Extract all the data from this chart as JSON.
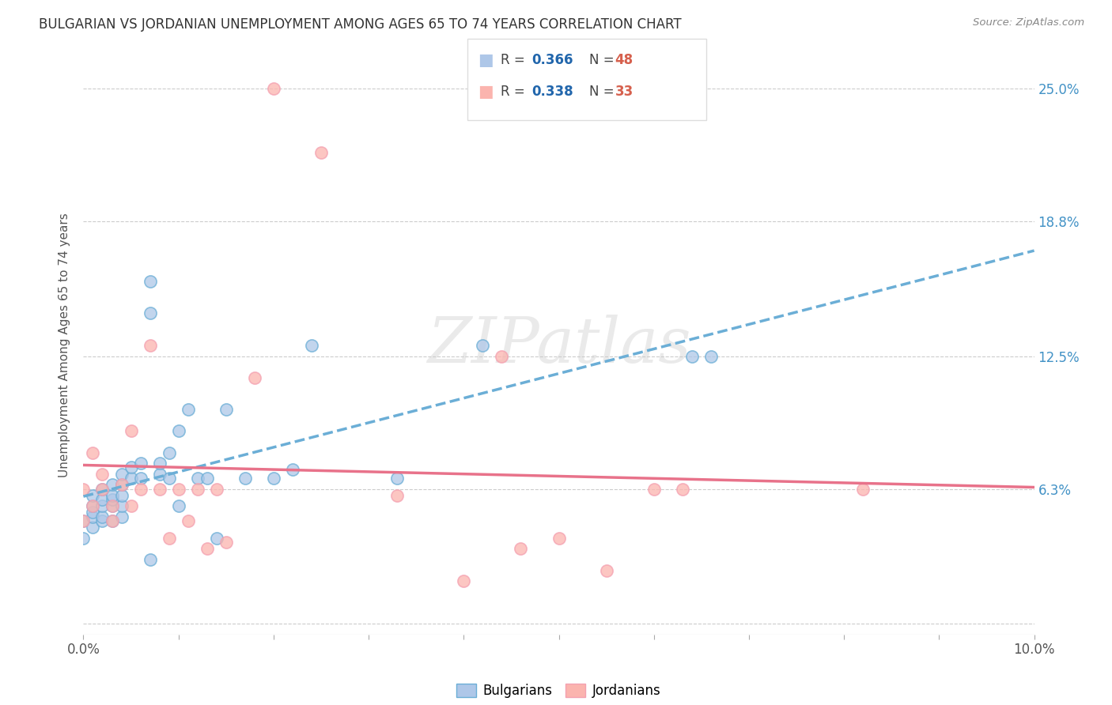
{
  "title": "BULGARIAN VS JORDANIAN UNEMPLOYMENT AMONG AGES 65 TO 74 YEARS CORRELATION CHART",
  "source": "Source: ZipAtlas.com",
  "ylabel": "Unemployment Among Ages 65 to 74 years",
  "xlim": [
    0.0,
    0.1
  ],
  "ylim": [
    -0.005,
    0.265
  ],
  "xticks": [
    0.0,
    0.01,
    0.02,
    0.03,
    0.04,
    0.05,
    0.06,
    0.07,
    0.08,
    0.09,
    0.1
  ],
  "xticklabels": [
    "0.0%",
    "",
    "",
    "",
    "",
    "",
    "",
    "",
    "",
    "",
    "10.0%"
  ],
  "yticks_right": [
    0.063,
    0.125,
    0.188,
    0.25
  ],
  "ytick_right_labels": [
    "6.3%",
    "12.5%",
    "18.8%",
    "25.0%"
  ],
  "bulgarian_R": 0.366,
  "bulgarian_N": 48,
  "jordanian_R": 0.338,
  "jordanian_N": 33,
  "bulgarian_color": "#aec7e8",
  "bulgarian_edge_color": "#6baed6",
  "jordanian_color": "#fbb4ae",
  "jordanian_edge_color": "#f4a0b0",
  "bulgarian_line_color": "#6baed6",
  "jordanian_line_color": "#e8728a",
  "legend_R_color": "#2166ac",
  "legend_N_color": "#d6604d",
  "bg_color": "#ffffff",
  "watermark": "ZIPatlas",
  "bulgarians_x": [
    0.0,
    0.0,
    0.001,
    0.001,
    0.001,
    0.001,
    0.001,
    0.002,
    0.002,
    0.002,
    0.002,
    0.002,
    0.003,
    0.003,
    0.003,
    0.003,
    0.003,
    0.004,
    0.004,
    0.004,
    0.004,
    0.004,
    0.005,
    0.005,
    0.006,
    0.006,
    0.007,
    0.007,
    0.007,
    0.008,
    0.008,
    0.009,
    0.009,
    0.01,
    0.01,
    0.011,
    0.012,
    0.013,
    0.014,
    0.015,
    0.017,
    0.02,
    0.022,
    0.024,
    0.033,
    0.042,
    0.064,
    0.066
  ],
  "bulgarians_y": [
    0.04,
    0.048,
    0.045,
    0.05,
    0.052,
    0.055,
    0.06,
    0.048,
    0.05,
    0.055,
    0.058,
    0.063,
    0.048,
    0.055,
    0.058,
    0.06,
    0.065,
    0.05,
    0.055,
    0.06,
    0.065,
    0.07,
    0.068,
    0.073,
    0.068,
    0.075,
    0.03,
    0.145,
    0.16,
    0.07,
    0.075,
    0.068,
    0.08,
    0.055,
    0.09,
    0.1,
    0.068,
    0.068,
    0.04,
    0.1,
    0.068,
    0.068,
    0.072,
    0.13,
    0.068,
    0.13,
    0.125,
    0.125
  ],
  "jordanians_x": [
    0.0,
    0.0,
    0.001,
    0.001,
    0.002,
    0.002,
    0.003,
    0.003,
    0.004,
    0.005,
    0.005,
    0.006,
    0.007,
    0.008,
    0.009,
    0.01,
    0.011,
    0.012,
    0.013,
    0.014,
    0.015,
    0.018,
    0.02,
    0.025,
    0.033,
    0.04,
    0.044,
    0.046,
    0.05,
    0.055,
    0.06,
    0.063,
    0.082
  ],
  "jordanians_y": [
    0.063,
    0.048,
    0.08,
    0.055,
    0.07,
    0.063,
    0.055,
    0.048,
    0.065,
    0.09,
    0.055,
    0.063,
    0.13,
    0.063,
    0.04,
    0.063,
    0.048,
    0.063,
    0.035,
    0.063,
    0.038,
    0.115,
    0.25,
    0.22,
    0.06,
    0.02,
    0.125,
    0.035,
    0.04,
    0.025,
    0.063,
    0.063,
    0.063
  ]
}
